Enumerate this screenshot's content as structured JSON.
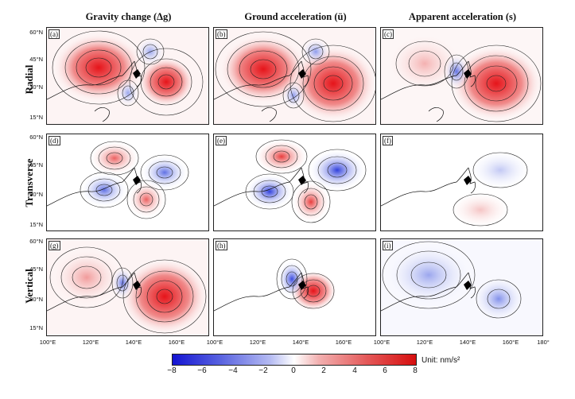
{
  "columns": [
    {
      "title": "Gravity change (Δg)"
    },
    {
      "title": "Ground acceleration (ü)"
    },
    {
      "title": "Apparent acceleration (s)"
    }
  ],
  "rows": [
    {
      "title": "Radial"
    },
    {
      "title": "Transverse"
    },
    {
      "title": "Vertical"
    }
  ],
  "panels": [
    {
      "label": "(a)"
    },
    {
      "label": "(b)"
    },
    {
      "label": "(c)"
    },
    {
      "label": "(d)"
    },
    {
      "label": "(e)"
    },
    {
      "label": "(f)"
    },
    {
      "label": "(g)"
    },
    {
      "label": "(h)"
    },
    {
      "label": "(i)"
    }
  ],
  "latitude_ticks": [
    "60°N",
    "45°N",
    "30°N",
    "15°N"
  ],
  "longitude_ticks": [
    "100°E",
    "120°E",
    "140°E",
    "160°E",
    "100°E",
    "120°E",
    "140°E",
    "160°E",
    "100°E",
    "120°E",
    "140°E",
    "160°E",
    "180°"
  ],
  "colorbar": {
    "ticks": [
      "−8",
      "−6",
      "−4",
      "−2",
      "0",
      "2",
      "4",
      "6",
      "8"
    ],
    "range": [
      -8,
      8
    ],
    "unit_label": "Unit: nm/s²",
    "colors": {
      "negative": "#1f1fd8",
      "zero": "#ffffff",
      "positive": "#e01818"
    }
  }
}
